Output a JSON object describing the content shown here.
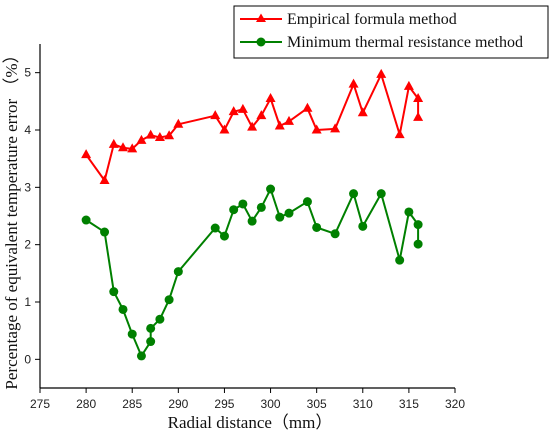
{
  "chart_data": {
    "type": "line",
    "xlabel": "Radial distance（mm）",
    "ylabel": "Percentage of equivalent temperature error （%）",
    "xlim": [
      275,
      320
    ],
    "ylim": [
      -0.5,
      5.5
    ],
    "xticks": [
      "275",
      "280",
      "285",
      "290",
      "295",
      "300",
      "305",
      "310",
      "315",
      "320"
    ],
    "yticks": [
      "0",
      "1",
      "2",
      "3",
      "4",
      "5"
    ],
    "legend_position": "top-right",
    "grid": false,
    "series": [
      {
        "name": "Empirical formula method",
        "color": "#ff0000",
        "marker": "triangle",
        "x": [
          280,
          282,
          283,
          284,
          285,
          286,
          287,
          288,
          289,
          290,
          294,
          295,
          296,
          297,
          298,
          299,
          300,
          301,
          302,
          304,
          305,
          307,
          309,
          310,
          312,
          314,
          315,
          316,
          316
        ],
        "y": [
          3.57,
          3.12,
          3.75,
          3.69,
          3.67,
          3.82,
          3.91,
          3.87,
          3.9,
          4.1,
          4.25,
          4.0,
          4.32,
          4.36,
          4.05,
          4.25,
          4.55,
          4.07,
          4.15,
          4.38,
          4.0,
          4.02,
          4.8,
          4.3,
          4.97,
          3.92,
          4.76,
          4.55,
          4.22
        ]
      },
      {
        "name": "Minimum thermal resistance method",
        "color": "#008000",
        "marker": "circle",
        "x": [
          280,
          282,
          283,
          284,
          285,
          286,
          287,
          287,
          288,
          289,
          290,
          294,
          295,
          296,
          297,
          298,
          299,
          300,
          301,
          302,
          304,
          305,
          307,
          309,
          310,
          312,
          314,
          315,
          316,
          316
        ],
        "y": [
          2.43,
          2.22,
          1.18,
          0.87,
          0.44,
          0.06,
          0.31,
          0.54,
          0.7,
          1.04,
          1.53,
          2.29,
          2.15,
          2.61,
          2.71,
          2.41,
          2.65,
          2.97,
          2.48,
          2.55,
          2.75,
          2.3,
          2.19,
          2.89,
          2.32,
          2.89,
          1.73,
          2.57,
          2.35,
          2.01
        ]
      }
    ]
  }
}
